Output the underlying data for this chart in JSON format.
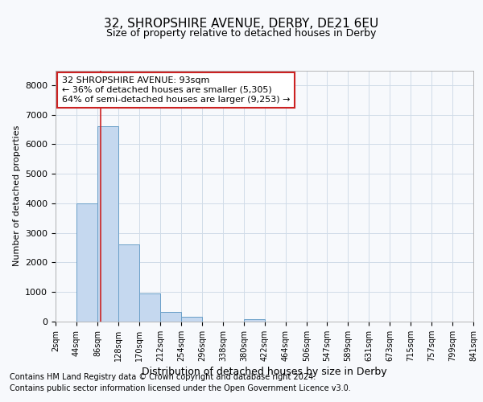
{
  "title1": "32, SHROPSHIRE AVENUE, DERBY, DE21 6EU",
  "title2": "Size of property relative to detached houses in Derby",
  "xlabel": "Distribution of detached houses by size in Derby",
  "ylabel": "Number of detached properties",
  "annotation_title": "32 SHROPSHIRE AVENUE: 93sqm",
  "annotation_line1": "← 36% of detached houses are smaller (5,305)",
  "annotation_line2": "64% of semi-detached houses are larger (9,253) →",
  "property_size_sqm": 93,
  "footnote1": "Contains HM Land Registry data © Crown copyright and database right 2024.",
  "footnote2": "Contains public sector information licensed under the Open Government Licence v3.0.",
  "bar_color": "#c5d8ef",
  "bar_edge_color": "#6a9fc8",
  "red_line_color": "#cc2222",
  "annotation_box_edge_color": "#cc2222",
  "annotation_box_fill": "#ffffff",
  "grid_color": "#d0dce8",
  "background_color": "#f7f9fc",
  "bin_edges": [
    2,
    44,
    86,
    128,
    170,
    212,
    254,
    296,
    338,
    380,
    422,
    464,
    506,
    547,
    589,
    631,
    673,
    715,
    757,
    799,
    841
  ],
  "bin_counts": [
    0,
    4000,
    6600,
    2600,
    950,
    330,
    150,
    0,
    0,
    80,
    0,
    0,
    0,
    0,
    0,
    0,
    0,
    0,
    0,
    0
  ],
  "ylim": [
    0,
    8500
  ],
  "yticks": [
    0,
    1000,
    2000,
    3000,
    4000,
    5000,
    6000,
    7000,
    8000
  ]
}
